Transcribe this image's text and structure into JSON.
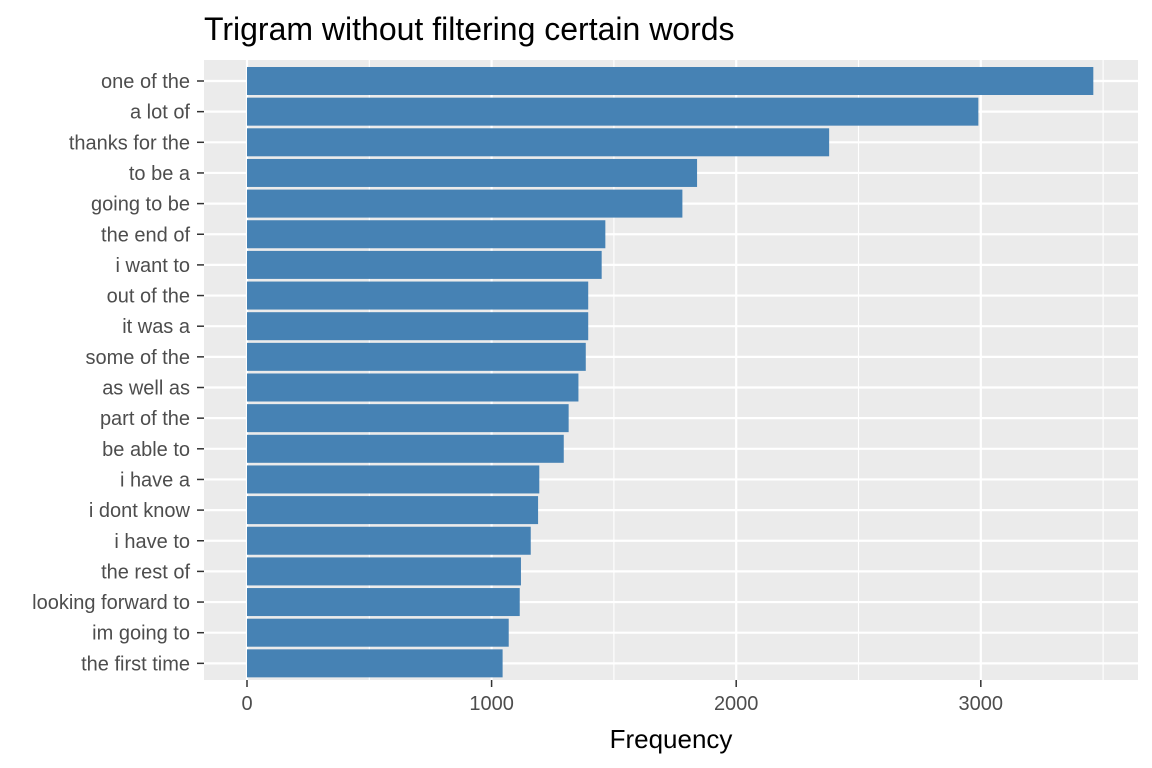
{
  "chart_data": {
    "type": "bar",
    "orientation": "horizontal",
    "title": "Trigram without filtering certain words",
    "xlabel": "Frequency",
    "ylabel": "",
    "xlim": [
      0,
      3600
    ],
    "x_ticks": [
      0,
      1000,
      2000,
      3000
    ],
    "grid": true,
    "bar_color": "#4682B4",
    "panel_color": "#EBEBEB",
    "grid_color": "#FFFFFF",
    "categories": [
      "one of the",
      "a lot of",
      "thanks for the",
      "to be a",
      "going to be",
      "the end of",
      "i want to",
      "out of the",
      "it was a",
      "some of the",
      "as well as",
      "part of the",
      "be able to",
      "i have a",
      "i dont know",
      "i have to",
      "the rest of",
      "looking forward to",
      "im going to",
      "the first time"
    ],
    "values": [
      3460,
      2990,
      2380,
      1840,
      1780,
      1465,
      1450,
      1395,
      1395,
      1385,
      1355,
      1315,
      1295,
      1195,
      1190,
      1160,
      1120,
      1115,
      1070,
      1045
    ]
  }
}
